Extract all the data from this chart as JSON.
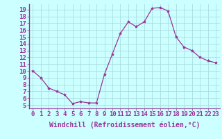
{
  "x": [
    0,
    1,
    2,
    3,
    4,
    5,
    6,
    7,
    8,
    9,
    10,
    11,
    12,
    13,
    14,
    15,
    16,
    17,
    18,
    19,
    20,
    21,
    22,
    23
  ],
  "y": [
    10,
    9,
    7.5,
    7,
    6.5,
    5.2,
    5.5,
    5.3,
    5.3,
    9.5,
    12.5,
    15.5,
    17.2,
    16.5,
    17.2,
    19.2,
    19.3,
    18.8,
    15.0,
    13.5,
    13.0,
    12.0,
    11.5,
    11.2
  ],
  "line_color": "#993399",
  "marker": "*",
  "marker_size": 3,
  "bg_color": "#ccffff",
  "grid_color": "#aadddd",
  "xlabel": "Windchill (Refroidissement éolien,°C)",
  "ylabel_ticks": [
    5,
    6,
    7,
    8,
    9,
    10,
    11,
    12,
    13,
    14,
    15,
    16,
    17,
    18,
    19
  ],
  "ylim": [
    4.5,
    19.8
  ],
  "xlim": [
    -0.5,
    23.5
  ],
  "xlabel_fontsize": 7.0,
  "tick_fontsize": 6.5,
  "xlabel_color": "#993399",
  "tick_color": "#993399",
  "spine_color": "#993399"
}
